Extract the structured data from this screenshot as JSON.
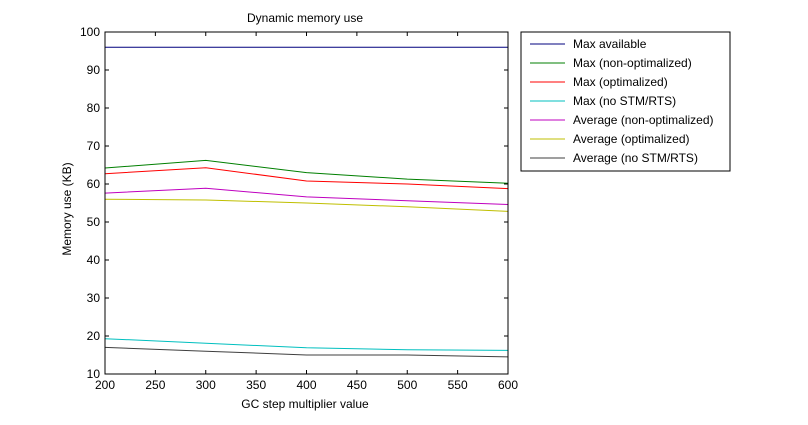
{
  "chart_data": {
    "type": "line",
    "title": "Dynamic memory use",
    "xlabel": "GC step multiplier value",
    "ylabel": "Memory use (KB)",
    "xlim": [
      200,
      600
    ],
    "ylim": [
      10,
      100
    ],
    "xticks": [
      200,
      250,
      300,
      350,
      400,
      450,
      500,
      550,
      600
    ],
    "yticks": [
      10,
      20,
      30,
      40,
      50,
      60,
      70,
      80,
      90,
      100
    ],
    "grid": false,
    "legend": "outside-top-right",
    "x": [
      200,
      300,
      400,
      500,
      600
    ],
    "series": [
      {
        "name": "Max available",
        "color": "#00007f",
        "values": [
          96,
          96,
          96,
          96,
          96
        ]
      },
      {
        "name": "Max (non-optimalized)",
        "color": "#007f00",
        "values": [
          64.2,
          66.2,
          63.0,
          61.3,
          60.2
        ]
      },
      {
        "name": "Max (optimalized)",
        "color": "#ff0000",
        "values": [
          62.7,
          64.3,
          60.8,
          60.0,
          58.8
        ]
      },
      {
        "name": "Max (no STM/RTS)",
        "color": "#00bfbf",
        "values": [
          19.3,
          18.1,
          16.9,
          16.4,
          16.2
        ]
      },
      {
        "name": "Average (non-optimalized)",
        "color": "#bf00bf",
        "values": [
          57.6,
          58.9,
          56.6,
          55.6,
          54.6
        ]
      },
      {
        "name": "Average (optimalized)",
        "color": "#bfbf00",
        "values": [
          56.0,
          55.8,
          55.0,
          54.0,
          52.8
        ]
      },
      {
        "name": "Average (no STM/RTS)",
        "color": "#3f3f3f",
        "values": [
          17.0,
          16.0,
          15.0,
          15.0,
          14.5
        ]
      }
    ]
  }
}
